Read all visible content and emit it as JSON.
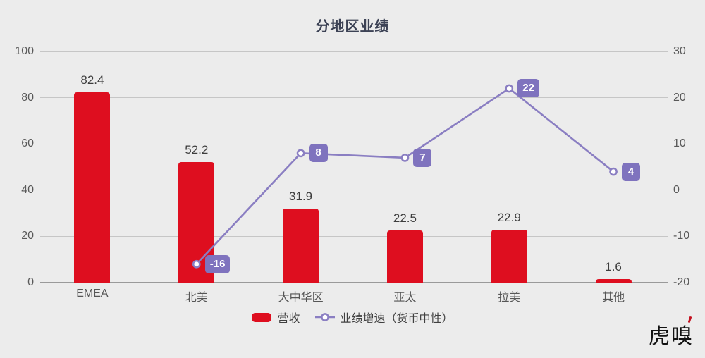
{
  "watermark": "虎嗅",
  "colors": {
    "background": "#ECECEC",
    "bar": "#DE0E1F",
    "line": "#8A7EC2",
    "marker_fill": "#FFFFFF",
    "label_box": "#7F73BE",
    "label_text": "#FFFFFF",
    "gridline": "#C6C6C6",
    "axis_text": "#595959"
  },
  "chart_data": {
    "type": "bar+line",
    "title": "分地区业绩",
    "categories": [
      "EMEA",
      "北美",
      "大中华区",
      "亚太",
      "拉美",
      "其他"
    ],
    "series": [
      {
        "name": "营收",
        "type": "bar",
        "axis": "left",
        "values": [
          82.4,
          52.2,
          31.9,
          22.5,
          22.9,
          1.6
        ]
      },
      {
        "name": "业绩增速（货币中性）",
        "type": "line",
        "axis": "right",
        "values": [
          null,
          -16,
          8,
          7,
          22,
          4
        ]
      }
    ],
    "left_axis": {
      "range": [
        0,
        100
      ],
      "ticks": [
        0,
        20,
        40,
        60,
        80,
        100
      ]
    },
    "right_axis": {
      "range": [
        -20,
        30
      ],
      "ticks": [
        -20,
        -10,
        0,
        10,
        20,
        30
      ]
    },
    "grid": true,
    "legend_position": "bottom"
  }
}
